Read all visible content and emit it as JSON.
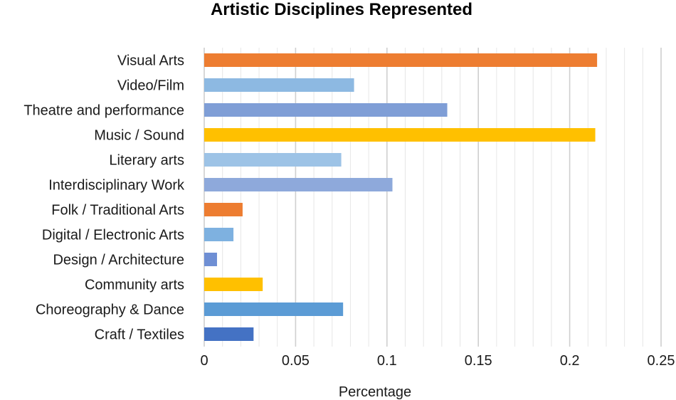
{
  "chart_data": {
    "type": "bar",
    "orientation": "horizontal",
    "title": "Artistic Disciplines Represented",
    "xlabel": "Percentage",
    "ylabel": "",
    "xlim": [
      0,
      0.25
    ],
    "xticks": [
      "0",
      "0.05",
      "0.1",
      "0.15",
      "0.2",
      "0.25"
    ],
    "grid": true,
    "legend": "none",
    "categories": [
      "Visual Arts",
      "Video/Film",
      "Theatre and performance",
      "Music / Sound",
      "Literary arts",
      "Interdisciplinary Work",
      "Folk / Traditional Arts",
      "Digital / Electronic Arts",
      "Design / Architecture",
      "Community arts",
      "Choreography & Dance",
      "Craft / Textiles"
    ],
    "values": [
      0.215,
      0.082,
      0.133,
      0.214,
      0.075,
      0.103,
      0.021,
      0.016,
      0.007,
      0.032,
      0.076,
      0.027
    ],
    "colors": [
      "#ED7D31",
      "#8DB9E2",
      "#7F9ED6",
      "#FFC000",
      "#9DC3E6",
      "#8EA9DB",
      "#ED7D31",
      "#7EB1E0",
      "#6F8FD4",
      "#FFC000",
      "#5B9BD5",
      "#4472C4"
    ]
  }
}
